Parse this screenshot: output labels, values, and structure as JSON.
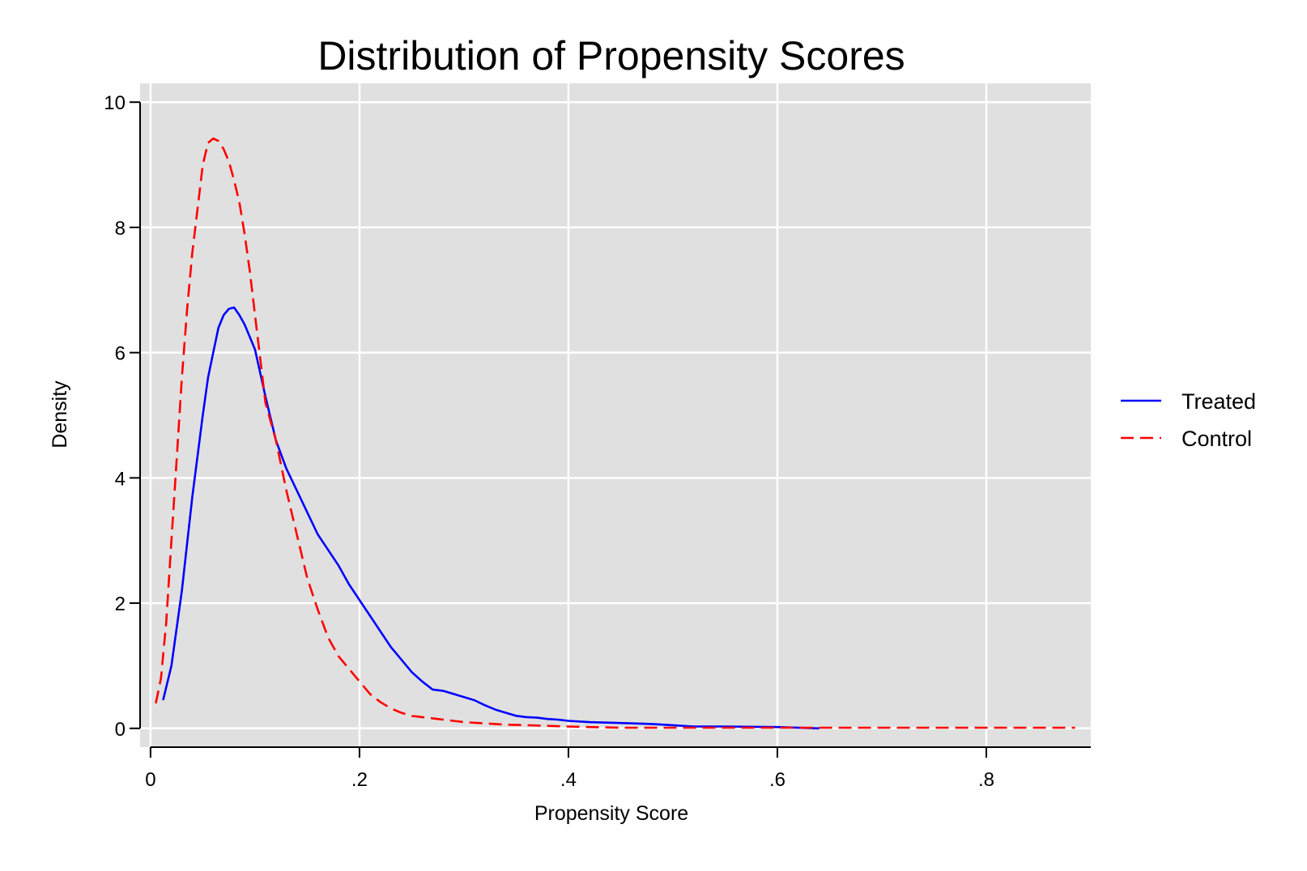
{
  "chart_data": {
    "type": "line",
    "title": "Distribution of Propensity Scores",
    "xlabel": "Propensity Score",
    "ylabel": "Density",
    "xlim": [
      -0.01,
      0.9
    ],
    "ylim": [
      -0.3,
      10.3
    ],
    "xticks": [
      0,
      0.2,
      0.4,
      0.6,
      0.8
    ],
    "xtick_labels": [
      "0",
      ".2",
      ".4",
      ".6",
      ".8"
    ],
    "yticks": [
      0,
      2,
      4,
      6,
      8,
      10
    ],
    "ytick_labels": [
      "0",
      "2",
      "4",
      "6",
      "8",
      "10"
    ],
    "grid": true,
    "legend_position": "right",
    "series": [
      {
        "name": "Treated",
        "color": "#0000ff",
        "dash": "solid",
        "x": [
          0.012,
          0.02,
          0.03,
          0.04,
          0.05,
          0.055,
          0.06,
          0.065,
          0.07,
          0.075,
          0.08,
          0.085,
          0.09,
          0.095,
          0.1,
          0.11,
          0.12,
          0.13,
          0.14,
          0.15,
          0.16,
          0.17,
          0.18,
          0.19,
          0.2,
          0.21,
          0.22,
          0.23,
          0.24,
          0.25,
          0.26,
          0.27,
          0.28,
          0.29,
          0.3,
          0.31,
          0.32,
          0.33,
          0.34,
          0.35,
          0.36,
          0.37,
          0.38,
          0.39,
          0.4,
          0.42,
          0.44,
          0.46,
          0.48,
          0.5,
          0.52,
          0.55,
          0.6,
          0.64
        ],
        "y": [
          0.45,
          1.0,
          2.2,
          3.7,
          5.0,
          5.6,
          6.0,
          6.4,
          6.6,
          6.7,
          6.72,
          6.6,
          6.45,
          6.25,
          6.05,
          5.3,
          4.6,
          4.15,
          3.8,
          3.45,
          3.1,
          2.85,
          2.6,
          2.3,
          2.05,
          1.8,
          1.55,
          1.3,
          1.1,
          0.9,
          0.75,
          0.62,
          0.6,
          0.55,
          0.5,
          0.45,
          0.37,
          0.3,
          0.25,
          0.2,
          0.18,
          0.17,
          0.15,
          0.14,
          0.12,
          0.1,
          0.09,
          0.08,
          0.07,
          0.05,
          0.03,
          0.03,
          0.02,
          0.0
        ]
      },
      {
        "name": "Control",
        "color": "#ff0000",
        "dash": "dashed",
        "x": [
          0.005,
          0.01,
          0.015,
          0.02,
          0.025,
          0.03,
          0.035,
          0.04,
          0.045,
          0.05,
          0.055,
          0.06,
          0.065,
          0.07,
          0.075,
          0.08,
          0.085,
          0.09,
          0.095,
          0.1,
          0.105,
          0.11,
          0.12,
          0.13,
          0.14,
          0.15,
          0.16,
          0.17,
          0.18,
          0.19,
          0.2,
          0.21,
          0.22,
          0.23,
          0.24,
          0.25,
          0.26,
          0.27,
          0.28,
          0.29,
          0.3,
          0.32,
          0.34,
          0.36,
          0.38,
          0.4,
          0.42,
          0.45,
          0.5,
          0.55,
          0.6,
          0.65,
          0.7,
          0.75,
          0.8,
          0.85,
          0.885
        ],
        "y": [
          0.4,
          0.8,
          1.7,
          3.0,
          4.3,
          5.6,
          6.7,
          7.6,
          8.3,
          9.0,
          9.35,
          9.42,
          9.38,
          9.25,
          9.05,
          8.75,
          8.4,
          7.9,
          7.3,
          6.6,
          5.9,
          5.2,
          4.6,
          3.8,
          3.1,
          2.4,
          1.9,
          1.45,
          1.15,
          0.95,
          0.75,
          0.55,
          0.42,
          0.32,
          0.25,
          0.2,
          0.18,
          0.16,
          0.14,
          0.12,
          0.1,
          0.08,
          0.06,
          0.05,
          0.04,
          0.03,
          0.02,
          0.01,
          0.01,
          0.01,
          0.01,
          0.01,
          0.01,
          0.01,
          0.01,
          0.01,
          0.01
        ]
      }
    ]
  }
}
